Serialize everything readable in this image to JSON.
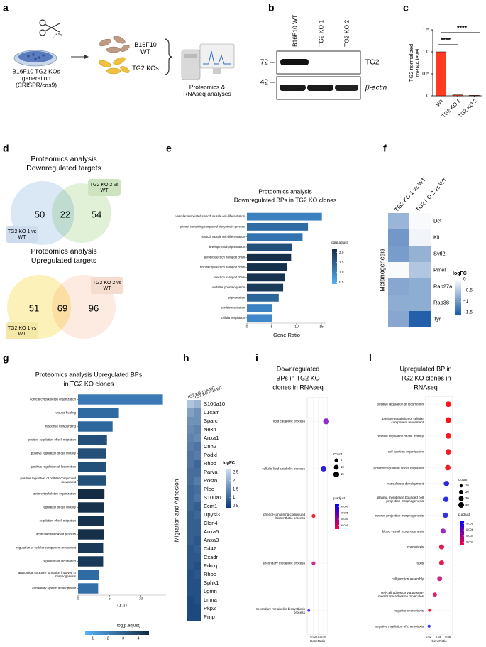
{
  "panel_labels": [
    "a",
    "b",
    "c",
    "d",
    "e",
    "f",
    "g",
    "h",
    "i",
    "l"
  ],
  "schematic": {
    "generation": "B16F10 TG2 KOs generation (CRISPR/cas9)",
    "wt": "B16F10 WT",
    "ko": "TG2 KOs",
    "analyses": "Proteomics & RNAseq analyses"
  },
  "blot": {
    "lanes": [
      "B16F10 WT",
      "TG2 KO 1",
      "TG2 KO 2"
    ],
    "markers": [
      72,
      42
    ],
    "proteins": [
      "TG2",
      "β-actin"
    ]
  },
  "venn": [
    {
      "title": [
        "Proteomics analysis",
        "Downregulated targets"
      ],
      "left": 50,
      "both": 22,
      "right": 54,
      "left_label": "TG2 KO 1 vs WT",
      "right_label": "TG2 KO 2 vs WT",
      "colors": [
        "#d3e4f5",
        "#d4ebc7"
      ]
    },
    {
      "title": [
        "Proteomics analysis",
        "Upregulated targets"
      ],
      "left": 51,
      "both": 69,
      "right": 96,
      "left_label": "TG2 KO 1 vs WT",
      "right_label": "TG2 KO 2 vs WT",
      "colors": [
        "#fcefad",
        "#fce3d5"
      ]
    }
  ],
  "chart_data": [
    {
      "type": "bar",
      "ylabel": [
        "TG2 normalized",
        "mRNA level"
      ],
      "categories": [
        "WT",
        "TG2 KO 1",
        "TG2 KO 2"
      ],
      "values": [
        1,
        0.02,
        0.01
      ],
      "color": "#ff3b1f",
      "ylim": [
        0,
        1.5
      ],
      "yticks": [
        0,
        0.5,
        {
          "value": 1,
          "label": "1.0"
        },
        1.5
      ],
      "annotations": [
        "****",
        "****"
      ]
    },
    {
      "type": "hbar",
      "title": [
        "Proteomics analysis",
        "Downregulated BPs in TG2 KO clones"
      ],
      "categories": [
        "vascular associated smooth muscle cell differentiation",
        "phenol-containing compound biosynthetic process",
        "smooth muscle cell differentiation",
        "developmental pigmentation",
        "aerobic electron transport chain",
        "respiratory electron transport chain",
        "electron transport chain",
        "oxidative phosphorylation",
        "pigmentation",
        "aerobic respiration",
        "cellular respiration"
      ],
      "values": [
        15.1,
        12.3,
        11.2,
        9.1,
        8.9,
        8.1,
        7.7,
        7.3,
        6.4,
        5.1,
        5.0
      ],
      "colors": [
        "#3b80bf",
        "#2f6ca4",
        "#3374b0",
        "#22507a",
        "#162f49",
        "#15304b",
        "#173350",
        "#1b3b5b",
        "#2c659a",
        "#3b82c2",
        "#3f89cb"
      ],
      "xlim": [
        0,
        16
      ],
      "xticks": [
        0,
        5,
        10,
        15
      ],
      "xlabel": "Gene Ratio",
      "legend": {
        "title": "log(p.adjust)",
        "colorscale": [
          "#56b1f7",
          "#132b43"
        ],
        "lim": [
          0.4,
          2.2
        ],
        "ticks": [
          0.5,
          {
            "value": 1,
            "label": "1.0"
          },
          1.5,
          {
            "value": 2,
            "label": "2.0"
          }
        ]
      }
    },
    {
      "type": "heatmap",
      "columns": [
        "TG2 KO 1 vs WT",
        "TG2 KO 2 vs WT"
      ],
      "rows": [
        "Dct",
        "Kit",
        "Sytl2",
        "Pmel",
        "Rab27a",
        "Rab38",
        "Tyr"
      ],
      "values": [
        [
          -0.72,
          -0.05
        ],
        [
          -1.0,
          -0.1
        ],
        [
          -0.95,
          -0.75
        ],
        [
          -0.05,
          -0.55
        ],
        [
          -0.85,
          -0.8
        ],
        [
          -0.8,
          -0.8
        ],
        [
          -0.85,
          -1.55
        ]
      ],
      "group": "Melanogenesis",
      "legend": {
        "title": "logFC",
        "colorscale": [
          "#1d5aa6",
          "#ffffff"
        ],
        "lim": [
          -1.6,
          0
        ],
        "ticks": [
          0,
          {
            "value": -0.5,
            "label": "−0.5"
          },
          {
            "value": -1,
            "label": "−1"
          },
          {
            "value": -1.5,
            "label": "−1.5"
          }
        ]
      }
    },
    {
      "type": "hbar",
      "title": [
        "Proteomics analysis Upregulated BPs",
        "in TG2 KO clones"
      ],
      "categories": [
        "cortical cytoskeleton organization",
        "wound healing",
        "response to wounding",
        "positive regulation of cell migration",
        "positive regulation of cell motility",
        "positive regulation of locomotion",
        "positive regulation of cellular component movement",
        "actin cytoskeleton organization",
        "regulation of cell motility",
        "regulation of cell migration",
        "actin filament-based process",
        "regulation of cellular component movement",
        "regulation of locomotion",
        "anatomical structure formation involved in morphogenesis",
        "circulatory system development"
      ],
      "values": [
        13.5,
        6.5,
        5.5,
        4.6,
        4.5,
        4.4,
        4.4,
        4.2,
        4.1,
        4.1,
        4.1,
        4.0,
        4.0,
        3.3,
        3.2
      ],
      "colors": [
        "#3a79b4",
        "#2f6aa0",
        "#2d669b",
        "#234f79",
        "#234f79",
        "#22507b",
        "#22507b",
        "#132c44",
        "#16324c",
        "#16324c",
        "#162f49",
        "#1a3857",
        "#1a3857",
        "#2f6ca3",
        "#346fa7"
      ],
      "xlim": [
        0,
        14
      ],
      "xticks": [
        0,
        5,
        10
      ],
      "xlabel": "ODD",
      "legend": {
        "title": "log(p.adjust)",
        "colorscale": [
          "#56b1f7",
          "#132b43"
        ],
        "lim": [
          0.5,
          4.7
        ],
        "ticks": [
          1,
          2,
          3,
          4
        ]
      }
    },
    {
      "type": "heatmap",
      "columns": [
        "TG2 KO 1 vs WT",
        "TG2 KO 2 vs WT"
      ],
      "rows": [
        "S100a10",
        "L1cam",
        "Sparc",
        "Nexn",
        "Anxa1",
        "Cnn2",
        "Podxl",
        "Rhod",
        "Parva",
        "Postn",
        "Plec",
        "S100a11",
        "Ecm1",
        "Dpysl3",
        "Cldn4",
        "Anxa5",
        "Anxa3",
        "Cd47",
        "Cxadr",
        "Prkcq",
        "Rhoc",
        "Sphk1",
        "Lgmn",
        "Lmna",
        "Pkp2",
        "Prnp"
      ],
      "values": [
        [
          2.3,
          2.1
        ],
        [
          1.8,
          1.6
        ],
        [
          1.6,
          1.6
        ],
        [
          1.5,
          1.4
        ],
        [
          1.4,
          1.5
        ],
        [
          1.3,
          1.2
        ],
        [
          1.2,
          1.3
        ],
        [
          1.2,
          1.0
        ],
        [
          1.1,
          1.1
        ],
        [
          1.1,
          1.3
        ],
        [
          1.0,
          1.1
        ],
        [
          1.0,
          1.2
        ],
        [
          1.0,
          0.9
        ],
        [
          0.9,
          1.0
        ],
        [
          0.9,
          0.9
        ],
        [
          0.9,
          0.9
        ],
        [
          0.9,
          0.8
        ],
        [
          0.8,
          0.9
        ],
        [
          0.8,
          0.8
        ],
        [
          0.8,
          0.7
        ],
        [
          0.7,
          0.8
        ],
        [
          0.7,
          0.7
        ],
        [
          0.7,
          0.7
        ],
        [
          0.6,
          0.7
        ],
        [
          0.6,
          0.6
        ],
        [
          0.6,
          0.6
        ]
      ],
      "group": "Migration and Adhesion",
      "legend": {
        "title": "logFC",
        "colorscale": [
          "#0b3a75",
          "#cfe2f3"
        ],
        "lim": [
          0.4,
          2.7
        ],
        "ticks": [
          2.5,
          2,
          1.5,
          1,
          0.5
        ]
      }
    },
    {
      "type": "dot",
      "title": [
        "Downregulated",
        "BPs in TG2 KO",
        "clones in RNAseq"
      ],
      "categories": [
        "lipid catabolic process",
        "cellular lipid catabolic process",
        "phenol-containing compound biosynthetic process",
        "secondary metabolic process",
        "secondary metabolite biosynthetic process"
      ],
      "values": [
        0.045,
        0.04,
        0.021,
        0.021,
        0.012
      ],
      "sizes": [
        16,
        14,
        5,
        5,
        2
      ],
      "colors": [
        "#8a2bd6",
        "#2b1ce8",
        "#f0203a",
        "#d02a8a",
        "#3a2ef0"
      ],
      "xlim": [
        0.009,
        0.048
      ],
      "xticks": [
        0.02,
        0.03,
        0.04
      ],
      "xlabel": "GeneRatio",
      "size_legend": {
        "title": "Count",
        "ticks": [
          5,
          10,
          15
        ]
      },
      "color_legend": {
        "title": "p.adjust",
        "colorscale": [
          "#ff0040",
          "#0000ff"
        ],
        "lim": [
          0.022,
          0.042
        ],
        "ticks": [
          {
            "value": 0.04,
            "label": "0.040"
          },
          0.035,
          {
            "value": 0.03,
            "label": "0.030"
          },
          0.025
        ]
      }
    },
    {
      "type": "dot",
      "title": [
        "Upregulated BP in",
        "TG2 KO clones in",
        "RNAseq"
      ],
      "categories": [
        "positive regulation of locomotion",
        "positive regulation of cellular component movement",
        "positive regulation of cell motility",
        "cell junction organization",
        "positive regulation of cell migration",
        "vasculature development",
        "plasma membrane bounded cell projection morphogenesis",
        "neuron projection morphogenesis",
        "blood vessel morphogenesis",
        "chemotaxis",
        "taxis",
        "cell junction assembly",
        "cell-cell adhesion via plasma-membrane adhesion molecules",
        "negative chemotaxis",
        "negative regulation of chemotaxis"
      ],
      "values": [
        0.061,
        0.061,
        0.061,
        0.061,
        0.06,
        0.057,
        0.056,
        0.055,
        0.05,
        0.047,
        0.047,
        0.043,
        0.033,
        0.022,
        0.021
      ],
      "sizes": [
        40,
        40,
        39,
        38,
        38,
        36,
        35,
        34,
        32,
        30,
        30,
        28,
        20,
        9,
        8
      ],
      "colors": [
        "#f4181c",
        "#f4181c",
        "#f01a20",
        "#ee1c26",
        "#ec1e2a",
        "#2a2ae0",
        "#2c2ee0",
        "#3434dc",
        "#a028c8",
        "#e02050",
        "#e02050",
        "#c82a8c",
        "#e0206a",
        "#f01828",
        "#3030e8"
      ],
      "xlim": [
        0.014,
        0.07
      ],
      "xticks": [
        0.02,
        0.04,
        0.06
      ],
      "xlabel": "GeneRatio",
      "size_legend": {
        "title": "Count",
        "ticks": [
          10,
          20,
          30,
          40
        ]
      },
      "color_legend": {
        "title": "p.adjust",
        "colorscale": [
          "#ff0040",
          "#0000ff"
        ],
        "lim": [
          0.001,
          0.009
        ],
        "ticks": [
          0.008,
          0.006,
          0.004,
          0.002
        ]
      }
    }
  ]
}
